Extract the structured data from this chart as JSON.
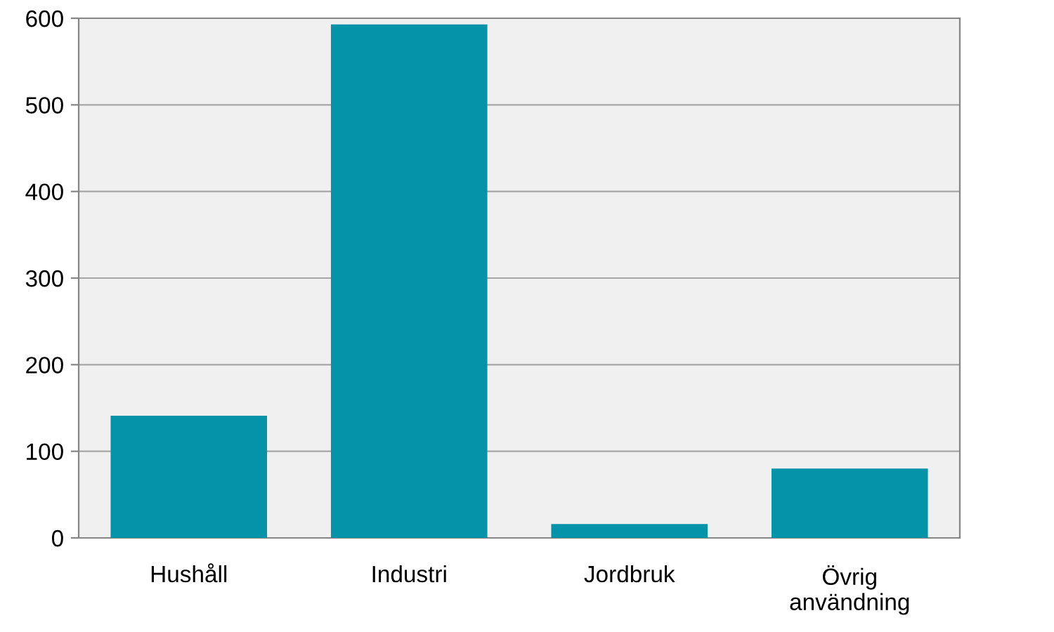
{
  "chart_data": {
    "type": "bar",
    "categories": [
      "Hushåll",
      "Industri",
      "Jordbruk",
      "Övrig\nanvändning"
    ],
    "values": [
      141,
      593,
      16,
      80
    ],
    "color": "#0493a9",
    "ylim": [
      0,
      600
    ],
    "yticks": [
      0,
      100,
      200,
      300,
      400,
      500,
      600
    ],
    "grid": "y"
  }
}
